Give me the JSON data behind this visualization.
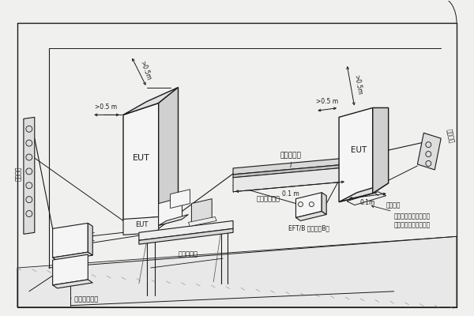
{
  "background_color": "#f0f0ee",
  "line_color": "#1a1a1a",
  "fig_width": 6.0,
  "fig_height": 4.0,
  "dpi": 100,
  "labels": {
    "eut_big": "EUT",
    "eut_mid": "EUT",
    "eut_small": "EUT",
    "eut_tiny": "EUT",
    "eut_right": "EUT",
    "coupling_clamp": "容性耦合夹",
    "ground_ref1": "接地参考平面",
    "ground_ref2": "· 接地参考平面",
    "eft_b": "EFT/B 发生器（B）",
    "eft_a_top": "EFT/B",
    "eft_a_bot": "发生器",
    "coupling_net": "耦合/去耦\n网络（A）",
    "non_metal_table": "非金属桌子",
    "insulation_support": "绝缘支座",
    "mfr_ground": "控制造商的规范接地，\n长度在试验计划中规定",
    "ac_power_left": "交流电源",
    "ac_power_right": "交流电源",
    "dim_05m_horiz": ">0.5 m",
    "dim_05m_diag1": ">0.5m",
    "dim_05m_right_horiz": ">0.5 m",
    "dim_05m_right_diag": ">0.5m",
    "dim_01m_left": "0.1 m",
    "dim_01m_right": "0.1m",
    "dim_l": "l"
  }
}
